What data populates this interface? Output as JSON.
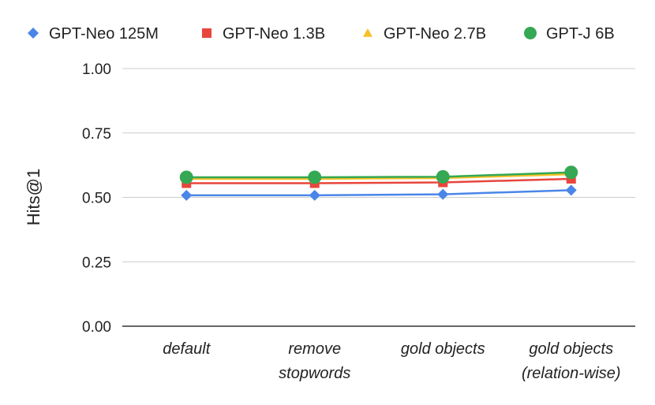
{
  "chart_data": {
    "type": "line",
    "title": "",
    "xlabel": "",
    "ylabel": "Hits@1",
    "ylim": [
      0,
      1
    ],
    "yticks": [
      "0.00",
      "0.25",
      "0.50",
      "0.75",
      "1.00"
    ],
    "ytick_values": [
      0,
      0.25,
      0.5,
      0.75,
      1.0
    ],
    "grid": true,
    "legend_position": "top",
    "categories": [
      [
        "default"
      ],
      [
        "remove",
        "stopwords"
      ],
      [
        "gold objects"
      ],
      [
        "gold objects",
        "(relation-wise)"
      ]
    ],
    "series": [
      {
        "name": "GPT-Neo 125M",
        "color": "#4a86e8",
        "marker": "diamond",
        "values": [
          0.508,
          0.508,
          0.512,
          0.528
        ]
      },
      {
        "name": "GPT-Neo 1.3B",
        "color": "#e8453c",
        "marker": "square",
        "values": [
          0.555,
          0.555,
          0.558,
          0.572
        ]
      },
      {
        "name": "GPT-Neo 2.7B",
        "color": "#f6c026",
        "marker": "triangle",
        "values": [
          0.572,
          0.572,
          0.575,
          0.59
        ]
      },
      {
        "name": "GPT-J 6B",
        "color": "#34a853",
        "marker": "circle",
        "values": [
          0.578,
          0.578,
          0.58,
          0.597
        ]
      }
    ]
  }
}
